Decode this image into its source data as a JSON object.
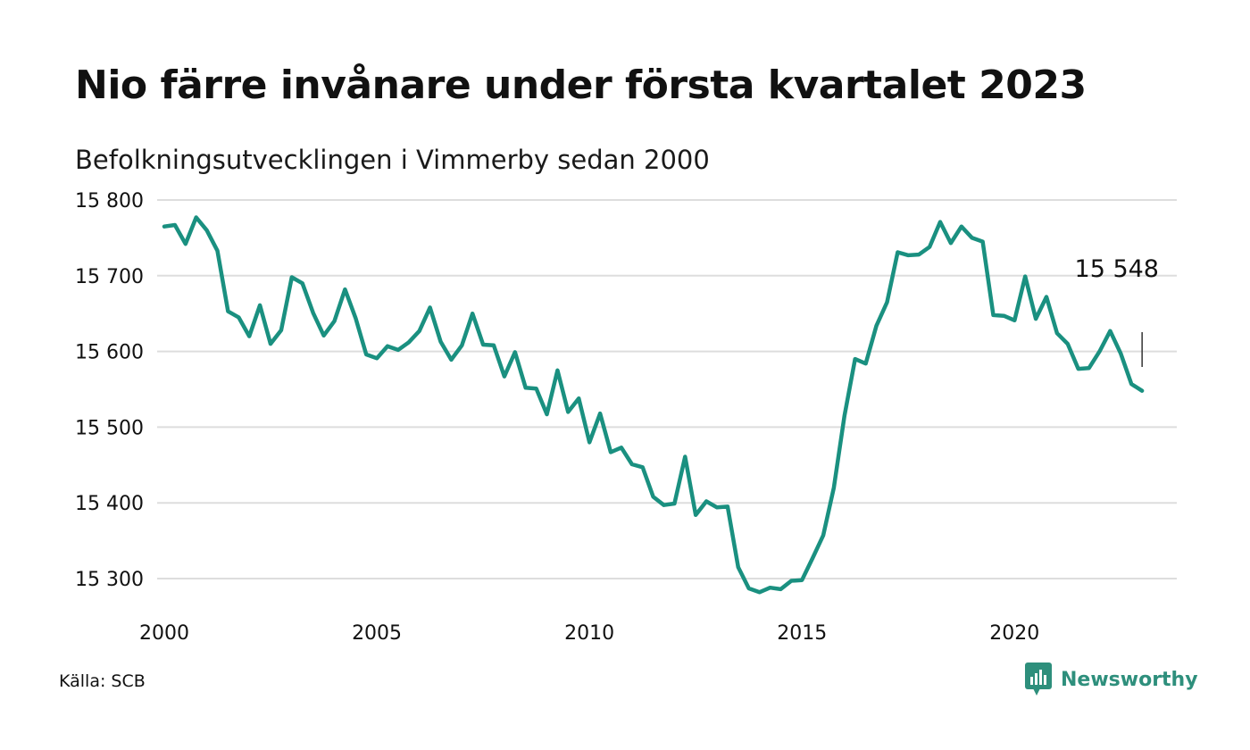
{
  "title": "Nio färre invånare under första kvartalet 2023",
  "subtitle": "Befolkningsutvecklingen i Vimmerby sedan 2000",
  "source": "Källa: SCB",
  "brand": "Newsworthy",
  "colors": {
    "line": "#1a9080",
    "grid": "#dddddd",
    "brand": "#2e8f7c"
  },
  "chart_data": {
    "type": "line",
    "title": "",
    "xlabel": "",
    "ylabel": "",
    "xlim": [
      2000,
      2023.25
    ],
    "ylim": [
      15280,
      15800
    ],
    "grid": true,
    "x_ticks": [
      2000,
      2005,
      2010,
      2015,
      2020
    ],
    "x_tick_labels": [
      "2000",
      "2005",
      "2010",
      "2015",
      "2020"
    ],
    "y_ticks": [
      15300,
      15400,
      15500,
      15600,
      15700,
      15800
    ],
    "y_tick_labels": [
      "15 300",
      "15 400",
      "15 500",
      "15 600",
      "15 700",
      "15 800"
    ],
    "last_value_label": "15 548",
    "series": [
      {
        "x_start": 2000.25,
        "x_step": 0.25,
        "values": [
          15765,
          15767,
          15742,
          15777,
          15760,
          15733,
          15653,
          15645,
          15620,
          15661,
          15610,
          15628,
          15698,
          15690,
          15651,
          15621,
          15640,
          15682,
          15644,
          15596,
          15591,
          15607,
          15602,
          15612,
          15627,
          15658,
          15613,
          15589,
          15608,
          15650,
          15609,
          15608,
          15567,
          15599,
          15552,
          15551,
          15517,
          15575,
          15520,
          15538,
          15480,
          15518,
          15467,
          15473,
          15451,
          15447,
          15408,
          15397,
          15399,
          15461,
          15384,
          15402,
          15394,
          15395,
          15315,
          15287,
          15282,
          15288,
          15286,
          15297,
          15298,
          15327,
          15357,
          15420,
          15515,
          15590,
          15584,
          15634,
          15665,
          15731,
          15727,
          15728,
          15738,
          15771,
          15743,
          15765,
          15750,
          15745,
          15648,
          15647,
          15641,
          15699,
          15643,
          15672,
          15624,
          15610,
          15577,
          15578,
          15600,
          15627,
          15597,
          15557,
          15548
        ]
      }
    ]
  }
}
